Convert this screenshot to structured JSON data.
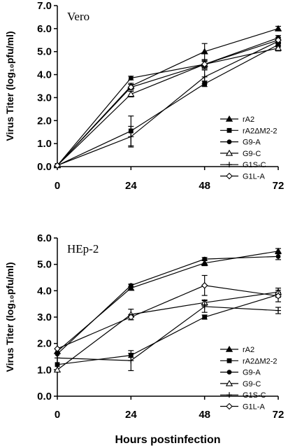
{
  "chart_data": [
    {
      "type": "line",
      "title": "Vero",
      "xlabel": "",
      "ylabel": "Virus Titer (log10pfu/ml)",
      "x": [
        0,
        24,
        48,
        72
      ],
      "xticks": [
        "0",
        "24",
        "48",
        "72"
      ],
      "yticks": [
        "0.0",
        "1.0",
        "2.0",
        "3.0",
        "4.0",
        "5.0",
        "6.0",
        "7.0"
      ],
      "ylim": [
        0,
        7
      ],
      "legend_position": "bottom-right",
      "series": [
        {
          "name": "rA2",
          "marker": "filled-triangle",
          "values": [
            0.05,
            3.5,
            5.0,
            6.0
          ],
          "err": [
            0,
            0.12,
            0.35,
            0.1
          ]
        },
        {
          "name": "rA2ΔM2-2",
          "marker": "filled-square",
          "values": [
            0.05,
            1.55,
            3.6,
            5.3
          ],
          "err": [
            0,
            0.65,
            0.12,
            0.1
          ]
        },
        {
          "name": "G9-A",
          "marker": "filled-circle",
          "values": [
            0.05,
            3.85,
            4.45,
            5.6
          ],
          "err": [
            0,
            0.08,
            0.15,
            0.1
          ]
        },
        {
          "name": "G9-C",
          "marker": "open-triangle",
          "values": [
            0.05,
            3.15,
            4.45,
            5.15
          ],
          "err": [
            0,
            0.12,
            0.12,
            0.12
          ]
        },
        {
          "name": "G1S-C",
          "marker": "plus",
          "values": [
            0.05,
            1.3,
            3.9,
            5.45
          ],
          "err": [
            0,
            0.45,
            0.3,
            0.1
          ]
        },
        {
          "name": "G1L-A",
          "marker": "open-diamond",
          "values": [
            0.05,
            3.45,
            4.45,
            5.5
          ],
          "err": [
            0,
            0.12,
            0.2,
            0.12
          ]
        }
      ]
    },
    {
      "type": "line",
      "title": "HEp-2",
      "xlabel": "Hours postinfection",
      "ylabel": "Virus Titer (log10pfu/ml)",
      "x": [
        0,
        24,
        48,
        72
      ],
      "xticks": [
        "0",
        "24",
        "48",
        "72"
      ],
      "yticks": [
        "0.0",
        "1.0",
        "2.0",
        "3.0",
        "4.0",
        "5.0",
        "6.0"
      ],
      "ylim": [
        0,
        6
      ],
      "legend_position": "bottom-right",
      "series": [
        {
          "name": "rA2",
          "marker": "filled-triangle",
          "values": [
            1.7,
            4.1,
            5.05,
            5.5
          ],
          "err": [
            0,
            0.05,
            0.1,
            0.1
          ]
        },
        {
          "name": "rA2ΔM2-2",
          "marker": "filled-square",
          "values": [
            1.2,
            1.55,
            3.0,
            3.85
          ],
          "err": [
            0,
            0.08,
            0.08,
            0.1
          ]
        },
        {
          "name": "G9-A",
          "marker": "filled-circle",
          "values": [
            1.6,
            4.2,
            5.2,
            5.3
          ],
          "err": [
            0,
            0.05,
            0.06,
            0.12
          ]
        },
        {
          "name": "G9-C",
          "marker": "open-triangle",
          "values": [
            1.0,
            3.1,
            3.55,
            3.95
          ],
          "err": [
            0,
            0.2,
            0.1,
            0.15
          ]
        },
        {
          "name": "G1S-C",
          "marker": "plus",
          "values": [
            1.45,
            1.35,
            3.4,
            3.25
          ],
          "err": [
            0,
            0.38,
            0.22,
            0.12
          ]
        },
        {
          "name": "G1L-A",
          "marker": "open-diamond",
          "values": [
            1.8,
            3.0,
            4.2,
            3.8
          ],
          "err": [
            0,
            0.1,
            0.38,
            0.22
          ]
        }
      ]
    }
  ]
}
